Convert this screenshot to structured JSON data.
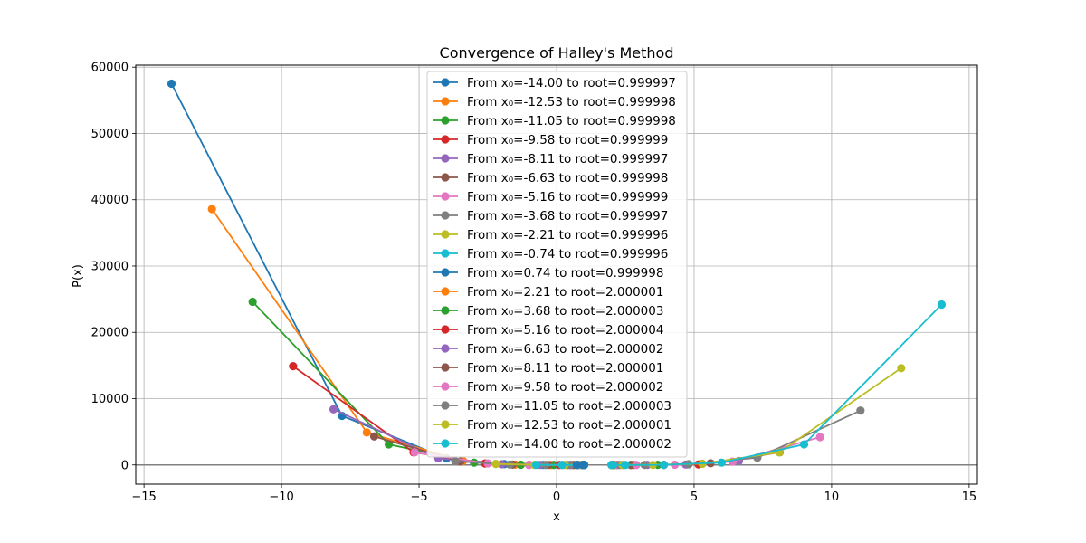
{
  "chart_data": {
    "type": "line",
    "title": "Convergence of Halley's Method",
    "xlabel": "x",
    "ylabel": "P(x)",
    "xlim": [
      -15.3,
      15.3
    ],
    "ylim": [
      -2900,
      60300
    ],
    "xticks": [
      -15,
      -10,
      -5,
      0,
      5,
      10,
      15
    ],
    "xtick_labels": [
      "−15",
      "−10",
      "−5",
      "0",
      "5",
      "10",
      "15"
    ],
    "yticks": [
      0,
      10000,
      20000,
      30000,
      40000,
      50000,
      60000
    ],
    "ytick_labels": [
      "0",
      "10000",
      "20000",
      "30000",
      "40000",
      "50000",
      "60000"
    ],
    "grid": true,
    "reference_line_y": 0,
    "legend_position": "top-center",
    "series": [
      {
        "name": "From x₀=-14.00 to root=0.999997",
        "color": "#1f77b4",
        "points": [
          [
            -14.0,
            57500
          ],
          [
            -7.8,
            7400
          ],
          [
            -4.0,
            1000
          ],
          [
            -1.9,
            120
          ],
          [
            -0.5,
            10
          ],
          [
            0.5,
            0
          ],
          [
            0.95,
            0
          ],
          [
            1.0,
            0
          ]
        ]
      },
      {
        "name": "From x₀=-12.53 to root=0.999998",
        "color": "#ff7f0e",
        "points": [
          [
            -12.53,
            38600
          ],
          [
            -6.9,
            4900
          ],
          [
            -3.4,
            600
          ],
          [
            -1.5,
            60
          ],
          [
            -0.2,
            5
          ],
          [
            0.6,
            0
          ],
          [
            0.98,
            0
          ],
          [
            1.0,
            0
          ]
        ]
      },
      {
        "name": "From x₀=-11.05 to root=0.999998",
        "color": "#2ca02c",
        "points": [
          [
            -11.05,
            24600
          ],
          [
            -6.1,
            3100
          ],
          [
            -3.0,
            350
          ],
          [
            -1.3,
            30
          ],
          [
            -0.1,
            0
          ],
          [
            0.7,
            0
          ],
          [
            1.0,
            0
          ]
        ]
      },
      {
        "name": "From x₀=-9.58 to root=0.999999",
        "color": "#d62728",
        "points": [
          [
            -9.58,
            14900
          ],
          [
            -5.2,
            1900
          ],
          [
            -2.6,
            220
          ],
          [
            -1.0,
            20
          ],
          [
            0.1,
            0
          ],
          [
            0.8,
            0
          ],
          [
            1.0,
            0
          ]
        ]
      },
      {
        "name": "From x₀=-8.11 to root=0.999997",
        "color": "#9467bd",
        "points": [
          [
            -8.11,
            8400
          ],
          [
            -4.3,
            1000
          ],
          [
            -2.0,
            110
          ],
          [
            -0.6,
            10
          ],
          [
            0.4,
            0
          ],
          [
            0.9,
            0
          ],
          [
            1.0,
            0
          ]
        ]
      },
      {
        "name": "From x₀=-6.63 to root=0.999998",
        "color": "#8c564b",
        "points": [
          [
            -6.63,
            4300
          ],
          [
            -3.5,
            520
          ],
          [
            -1.6,
            50
          ],
          [
            -0.3,
            0
          ],
          [
            0.6,
            0
          ],
          [
            1.0,
            0
          ]
        ]
      },
      {
        "name": "From x₀=-5.16 to root=0.999999",
        "color": "#e377c2",
        "points": [
          [
            -5.16,
            1900
          ],
          [
            -2.5,
            230
          ],
          [
            -1.0,
            20
          ],
          [
            0.2,
            0
          ],
          [
            0.8,
            0
          ],
          [
            1.0,
            0
          ]
        ]
      },
      {
        "name": "From x₀=-3.68 to root=0.999997",
        "color": "#7f7f7f",
        "points": [
          [
            -3.68,
            550
          ],
          [
            -1.7,
            60
          ],
          [
            -0.4,
            0
          ],
          [
            0.5,
            0
          ],
          [
            0.95,
            0
          ],
          [
            1.0,
            0
          ]
        ]
      },
      {
        "name": "From x₀=-2.21 to root=0.999996",
        "color": "#bcbd22",
        "points": [
          [
            -2.21,
            150
          ],
          [
            -0.8,
            15
          ],
          [
            0.3,
            0
          ],
          [
            0.85,
            0
          ],
          [
            1.0,
            0
          ]
        ]
      },
      {
        "name": "From x₀=-0.74 to root=0.999996",
        "color": "#17becf",
        "points": [
          [
            -0.74,
            10
          ],
          [
            0.2,
            0
          ],
          [
            0.75,
            0
          ],
          [
            0.98,
            0
          ],
          [
            1.0,
            0
          ]
        ]
      },
      {
        "name": "From x₀=0.74 to root=0.999998",
        "color": "#1f77b4",
        "points": [
          [
            0.74,
            0
          ],
          [
            0.95,
            0
          ],
          [
            1.0,
            0
          ]
        ]
      },
      {
        "name": "From x₀=2.21 to root=2.000001",
        "color": "#ff7f0e",
        "points": [
          [
            2.21,
            0
          ],
          [
            2.05,
            0
          ],
          [
            2.0,
            0
          ]
        ]
      },
      {
        "name": "From x₀=3.68 to root=2.000003",
        "color": "#2ca02c",
        "points": [
          [
            3.68,
            20
          ],
          [
            2.7,
            0
          ],
          [
            2.1,
            0
          ],
          [
            2.0,
            0
          ]
        ]
      },
      {
        "name": "From x₀=5.16 to root=2.000004",
        "color": "#d62728",
        "points": [
          [
            5.16,
            80
          ],
          [
            3.9,
            10
          ],
          [
            2.8,
            0
          ],
          [
            2.2,
            0
          ],
          [
            2.0,
            0
          ]
        ]
      },
      {
        "name": "From x₀=6.63 to root=2.000002",
        "color": "#9467bd",
        "points": [
          [
            6.63,
            600
          ],
          [
            4.7,
            60
          ],
          [
            3.3,
            10
          ],
          [
            2.4,
            0
          ],
          [
            2.0,
            0
          ]
        ]
      },
      {
        "name": "From x₀=8.11 to root=2.000001",
        "color": "#8c564b",
        "points": [
          [
            8.11,
            1900
          ],
          [
            5.6,
            250
          ],
          [
            3.9,
            20
          ],
          [
            2.7,
            0
          ],
          [
            2.1,
            0
          ],
          [
            2.0,
            0
          ]
        ]
      },
      {
        "name": "From x₀=9.58 to root=2.000002",
        "color": "#e377c2",
        "points": [
          [
            9.58,
            4200
          ],
          [
            6.4,
            500
          ],
          [
            4.3,
            40
          ],
          [
            2.9,
            0
          ],
          [
            2.2,
            0
          ],
          [
            2.0,
            0
          ]
        ]
      },
      {
        "name": "From x₀=11.05 to root=2.000003",
        "color": "#7f7f7f",
        "points": [
          [
            11.05,
            8200
          ],
          [
            7.3,
            1100
          ],
          [
            4.8,
            100
          ],
          [
            3.2,
            10
          ],
          [
            2.3,
            0
          ],
          [
            2.0,
            0
          ]
        ]
      },
      {
        "name": "From x₀=12.53 to root=2.000001",
        "color": "#bcbd22",
        "points": [
          [
            12.53,
            14600
          ],
          [
            8.1,
            1900
          ],
          [
            5.3,
            180
          ],
          [
            3.5,
            10
          ],
          [
            2.4,
            0
          ],
          [
            2.0,
            0
          ]
        ]
      },
      {
        "name": "From x₀=14.00 to root=2.000002",
        "color": "#17becf",
        "points": [
          [
            14.0,
            24200
          ],
          [
            9.0,
            3100
          ],
          [
            6.0,
            350
          ],
          [
            3.9,
            20
          ],
          [
            2.5,
            0
          ],
          [
            2.05,
            0
          ],
          [
            2.0,
            0
          ]
        ]
      }
    ]
  }
}
